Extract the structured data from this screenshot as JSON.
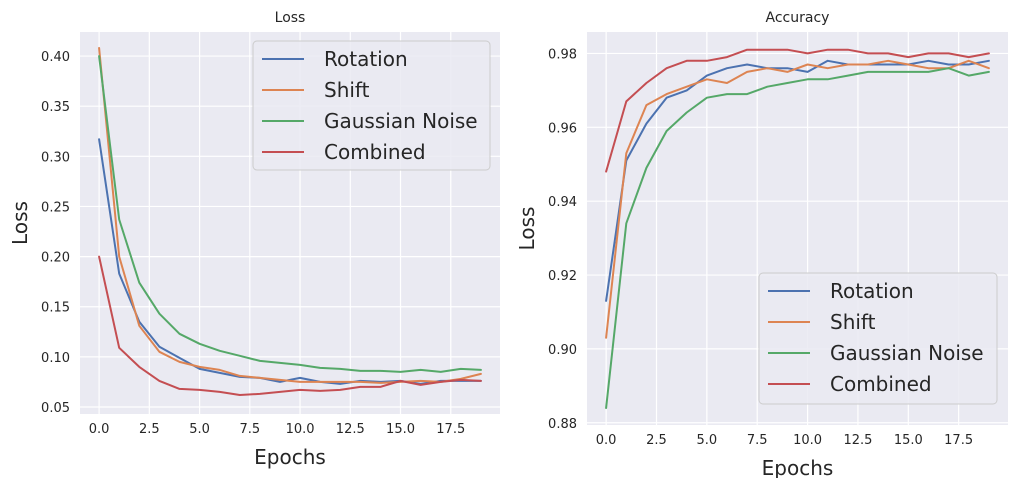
{
  "chart_data": [
    {
      "type": "line",
      "title": "Loss",
      "xlabel": "Epochs",
      "ylabel": "Loss",
      "xlim": [
        -0.95,
        19.95
      ],
      "ylim": [
        0.043,
        0.424
      ],
      "xticks": [
        0,
        2.5,
        5,
        7.5,
        10,
        12.5,
        15,
        17.5
      ],
      "xtick_labels": [
        "0.0",
        "2.5",
        "5.0",
        "7.5",
        "10.0",
        "12.5",
        "15.0",
        "17.5"
      ],
      "yticks": [
        0.05,
        0.1,
        0.15,
        0.2,
        0.25,
        0.3,
        0.35,
        0.4
      ],
      "ytick_labels": [
        "0.05",
        "0.10",
        "0.15",
        "0.20",
        "0.25",
        "0.30",
        "0.35",
        "0.40"
      ],
      "grid": true,
      "legend_position": "top-right",
      "x": [
        0,
        1,
        2,
        3,
        4,
        5,
        6,
        7,
        8,
        9,
        10,
        11,
        12,
        13,
        14,
        15,
        16,
        17,
        18,
        19
      ],
      "series": [
        {
          "name": "Rotation",
          "color": "#4c72b0",
          "values": [
            0.317,
            0.183,
            0.135,
            0.11,
            0.099,
            0.088,
            0.084,
            0.08,
            0.079,
            0.075,
            0.079,
            0.075,
            0.073,
            0.076,
            0.075,
            0.076,
            0.073,
            0.076,
            0.076,
            0.076
          ]
        },
        {
          "name": "Shift",
          "color": "#dd8452",
          "values": [
            0.408,
            0.2,
            0.131,
            0.105,
            0.095,
            0.09,
            0.087,
            0.081,
            0.079,
            0.077,
            0.075,
            0.075,
            0.075,
            0.075,
            0.074,
            0.075,
            0.076,
            0.075,
            0.078,
            0.083
          ]
        },
        {
          "name": "Gaussian Noise",
          "color": "#55a868",
          "values": [
            0.4,
            0.237,
            0.174,
            0.143,
            0.123,
            0.113,
            0.106,
            0.101,
            0.096,
            0.094,
            0.092,
            0.089,
            0.088,
            0.086,
            0.086,
            0.085,
            0.087,
            0.085,
            0.088,
            0.087
          ]
        },
        {
          "name": "Combined",
          "color": "#c44e52",
          "values": [
            0.2,
            0.109,
            0.09,
            0.076,
            0.068,
            0.067,
            0.065,
            0.062,
            0.063,
            0.065,
            0.067,
            0.066,
            0.067,
            0.07,
            0.07,
            0.076,
            0.072,
            0.075,
            0.077,
            0.076
          ]
        }
      ]
    },
    {
      "type": "line",
      "title": "Accuracy",
      "xlabel": "Epochs",
      "ylabel": "Loss",
      "xlim": [
        -0.95,
        19.95
      ],
      "ylim": [
        0.8794,
        0.9858
      ],
      "xticks": [
        0,
        2.5,
        5,
        7.5,
        10,
        12.5,
        15,
        17.5
      ],
      "xtick_labels": [
        "0.0",
        "2.5",
        "5.0",
        "7.5",
        "10.0",
        "12.5",
        "15.0",
        "17.5"
      ],
      "yticks": [
        0.88,
        0.9,
        0.92,
        0.94,
        0.96,
        0.98
      ],
      "ytick_labels": [
        "0.88",
        "0.90",
        "0.92",
        "0.94",
        "0.96",
        "0.98"
      ],
      "grid": true,
      "legend_position": "bottom-right",
      "x": [
        0,
        1,
        2,
        3,
        4,
        5,
        6,
        7,
        8,
        9,
        10,
        11,
        12,
        13,
        14,
        15,
        16,
        17,
        18,
        19
      ],
      "series": [
        {
          "name": "Rotation",
          "color": "#4c72b0",
          "values": [
            0.913,
            0.951,
            0.961,
            0.968,
            0.97,
            0.974,
            0.976,
            0.977,
            0.976,
            0.976,
            0.975,
            0.978,
            0.977,
            0.977,
            0.977,
            0.977,
            0.978,
            0.977,
            0.977,
            0.978
          ]
        },
        {
          "name": "Shift",
          "color": "#dd8452",
          "values": [
            0.903,
            0.953,
            0.966,
            0.969,
            0.971,
            0.973,
            0.972,
            0.975,
            0.976,
            0.975,
            0.977,
            0.976,
            0.977,
            0.977,
            0.978,
            0.977,
            0.976,
            0.976,
            0.978,
            0.976
          ]
        },
        {
          "name": "Gaussian Noise",
          "color": "#55a868",
          "values": [
            0.884,
            0.934,
            0.949,
            0.959,
            0.964,
            0.968,
            0.969,
            0.969,
            0.971,
            0.972,
            0.973,
            0.973,
            0.974,
            0.975,
            0.975,
            0.975,
            0.975,
            0.976,
            0.974,
            0.975
          ]
        },
        {
          "name": "Combined",
          "color": "#c44e52",
          "values": [
            0.948,
            0.967,
            0.972,
            0.976,
            0.978,
            0.978,
            0.979,
            0.981,
            0.981,
            0.981,
            0.98,
            0.981,
            0.981,
            0.98,
            0.98,
            0.979,
            0.98,
            0.98,
            0.979,
            0.98
          ]
        }
      ]
    }
  ]
}
